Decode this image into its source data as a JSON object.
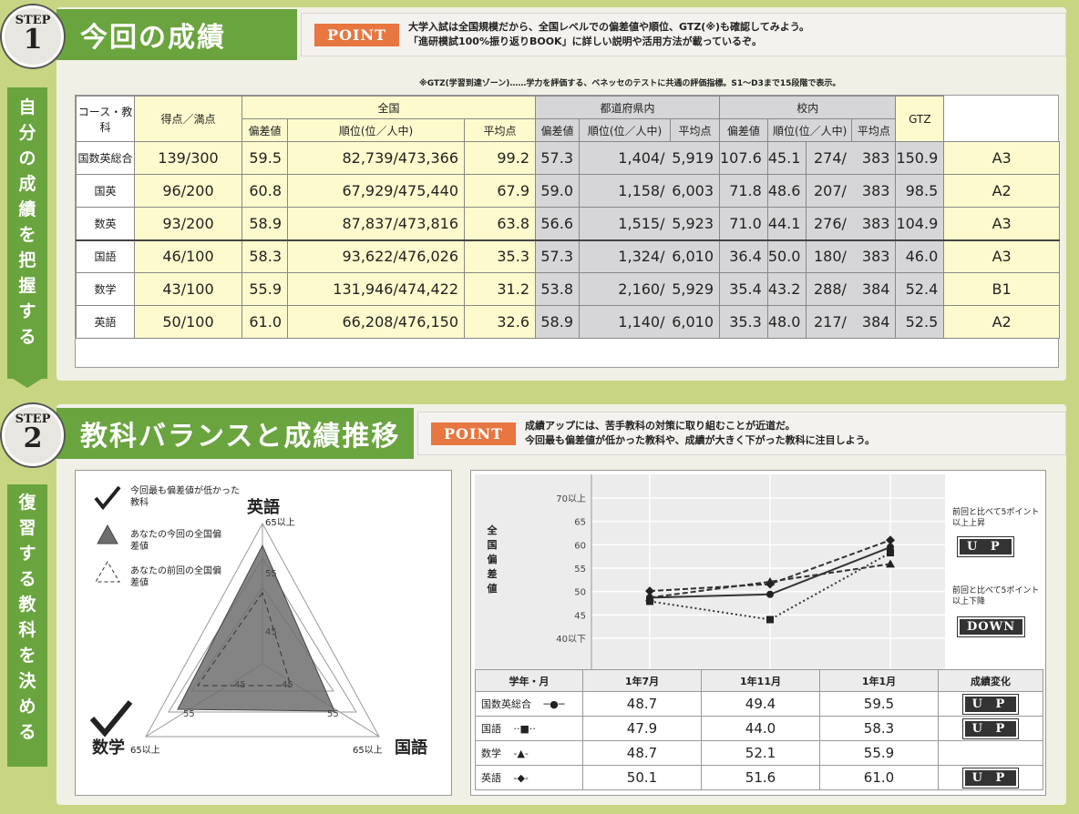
{
  "step1": {
    "badge_top": "STEP",
    "badge_num": "1",
    "title": "今回の成績",
    "point": "POINT",
    "point_line1": "大学入試は全国規模だから、全国レベルでの偏差値や順位、GTZ(※)も確認してみよう。",
    "point_line2": "「進研模試100%振り返りBOOK」に詳しい説明や活用方法が載っているぞ。",
    "vertical": [
      "自",
      "分",
      "の",
      "成",
      "績",
      "を",
      "把",
      "握",
      "す",
      "る"
    ],
    "note": "※GTZ(学習到達ゾーン)……学力を評価する、ベネッセのテストに共通の評価指標。S1～D3まで15段階で表示。"
  },
  "table": {
    "course": "コース・教科",
    "score": "得点／満点",
    "national": "全国",
    "prefecture": "都道府県内",
    "school": "校内",
    "gtz": "GTZ",
    "sub": {
      "dev": "偏差値",
      "rank": "順位(位／人中)",
      "avg": "平均点"
    },
    "rows": [
      {
        "subject": "国数英総合",
        "score": "139/300",
        "n_dev": "59.5",
        "n_rank": "82,739/473,366",
        "n_avg": "99.2",
        "p_dev": "57.3",
        "p_rank": "1,404/",
        "p_total": "5,919",
        "p_avg": "107.6",
        "s_dev": "45.1",
        "s_rank": "274/",
        "s_total": "383",
        "s_avg": "150.9",
        "gtz": "A3"
      },
      {
        "subject": "国英",
        "score": "96/200",
        "n_dev": "60.8",
        "n_rank": "67,929/475,440",
        "n_avg": "67.9",
        "p_dev": "59.0",
        "p_rank": "1,158/",
        "p_total": "6,003",
        "p_avg": "71.8",
        "s_dev": "48.6",
        "s_rank": "207/",
        "s_total": "383",
        "s_avg": "98.5",
        "gtz": "A2"
      },
      {
        "subject": "数英",
        "score": "93/200",
        "n_dev": "58.9",
        "n_rank": "87,837/473,816",
        "n_avg": "63.8",
        "p_dev": "56.6",
        "p_rank": "1,515/",
        "p_total": "5,923",
        "p_avg": "71.0",
        "s_dev": "44.1",
        "s_rank": "276/",
        "s_total": "383",
        "s_avg": "104.9",
        "gtz": "A3"
      },
      {
        "subject": "国語",
        "score": "46/100",
        "n_dev": "58.3",
        "n_rank": "93,622/476,026",
        "n_avg": "35.3",
        "p_dev": "57.3",
        "p_rank": "1,324/",
        "p_total": "6,010",
        "p_avg": "36.4",
        "s_dev": "50.0",
        "s_rank": "180/",
        "s_total": "383",
        "s_avg": "46.0",
        "gtz": "A3"
      },
      {
        "subject": "数学",
        "score": "43/100",
        "n_dev": "55.9",
        "n_rank": "131,946/474,422",
        "n_avg": "31.2",
        "p_dev": "53.8",
        "p_rank": "2,160/",
        "p_total": "5,929",
        "p_avg": "35.4",
        "s_dev": "43.2",
        "s_rank": "288/",
        "s_total": "384",
        "s_avg": "52.4",
        "gtz": "B1"
      },
      {
        "subject": "英語",
        "score": "50/100",
        "n_dev": "61.0",
        "n_rank": "66,208/476,150",
        "n_avg": "32.6",
        "p_dev": "58.9",
        "p_rank": "1,140/",
        "p_total": "6,010",
        "p_avg": "35.3",
        "s_dev": "48.0",
        "s_rank": "217/",
        "s_total": "384",
        "s_avg": "52.5",
        "gtz": "A2"
      }
    ]
  },
  "step2": {
    "badge_top": "STEP",
    "badge_num": "2",
    "title": "教科バランスと成績推移",
    "point": "POINT",
    "point_line1": "成績アップには、苦手教科の対策に取り組むことが近道だ。",
    "point_line2": "今回最も偏差値が低かった教科や、成績が大きく下がった教科に注目しよう。",
    "vertical": [
      "復",
      "習",
      "す",
      "る",
      "教",
      "科",
      "を",
      "決",
      "め",
      "る"
    ]
  },
  "radar": {
    "legend_check": "今回最も偏差値が低かった教科",
    "legend_now": "あなたの今回の全国偏差値",
    "legend_prev": "あなたの前回の全国偏差値",
    "top": "英語",
    "top_sub": "65以上",
    "left": "数学",
    "left_sub": "65以上",
    "right": "国語",
    "right_sub": "65以上",
    "ring_labels": [
      "55",
      "45",
      "45",
      "45",
      "55",
      "55"
    ]
  },
  "line": {
    "y_title": "全国偏差値",
    "y_ticks": [
      "70以上",
      "65",
      "60",
      "55",
      "50",
      "45",
      "40以下"
    ],
    "up_label": "前回と比べて5ポイント以上上昇",
    "down_label": "前回と比べて5ポイント以上下降",
    "up": "U P",
    "down": "DOWN"
  },
  "trend": {
    "header": [
      "学年・月",
      "1年7月",
      "1年11月",
      "1年1月",
      "成績変化"
    ],
    "rows": [
      {
        "name": "国数英総合",
        "mark": "─●─",
        "v": [
          "48.7",
          "49.4",
          "59.5"
        ],
        "chg": "U P"
      },
      {
        "name": "国語",
        "mark": "··■··",
        "v": [
          "47.9",
          "44.0",
          "58.3"
        ],
        "chg": "U P"
      },
      {
        "name": "数学",
        "mark": "-▲-",
        "v": [
          "48.7",
          "52.1",
          "55.9"
        ],
        "chg": ""
      },
      {
        "name": "英語",
        "mark": "-◆-",
        "v": [
          "50.1",
          "51.6",
          "61.0"
        ],
        "chg": "U P"
      }
    ]
  },
  "chart_data": {
    "type": "line",
    "categories": [
      "1年7月",
      "1年11月",
      "1年1月"
    ],
    "ylabel": "全国偏差値",
    "ylim": [
      40,
      70
    ],
    "series": [
      {
        "name": "国数英総合",
        "values": [
          48.7,
          49.4,
          59.5
        ]
      },
      {
        "name": "国語",
        "values": [
          47.9,
          44.0,
          58.3
        ]
      },
      {
        "name": "数学",
        "values": [
          48.7,
          52.1,
          55.9
        ]
      },
      {
        "name": "英語",
        "values": [
          50.1,
          51.6,
          61.0
        ]
      }
    ],
    "radar": {
      "axes": [
        "英語",
        "国語",
        "数学"
      ],
      "current": [
        61.0,
        58.3,
        55.9
      ]
    }
  }
}
